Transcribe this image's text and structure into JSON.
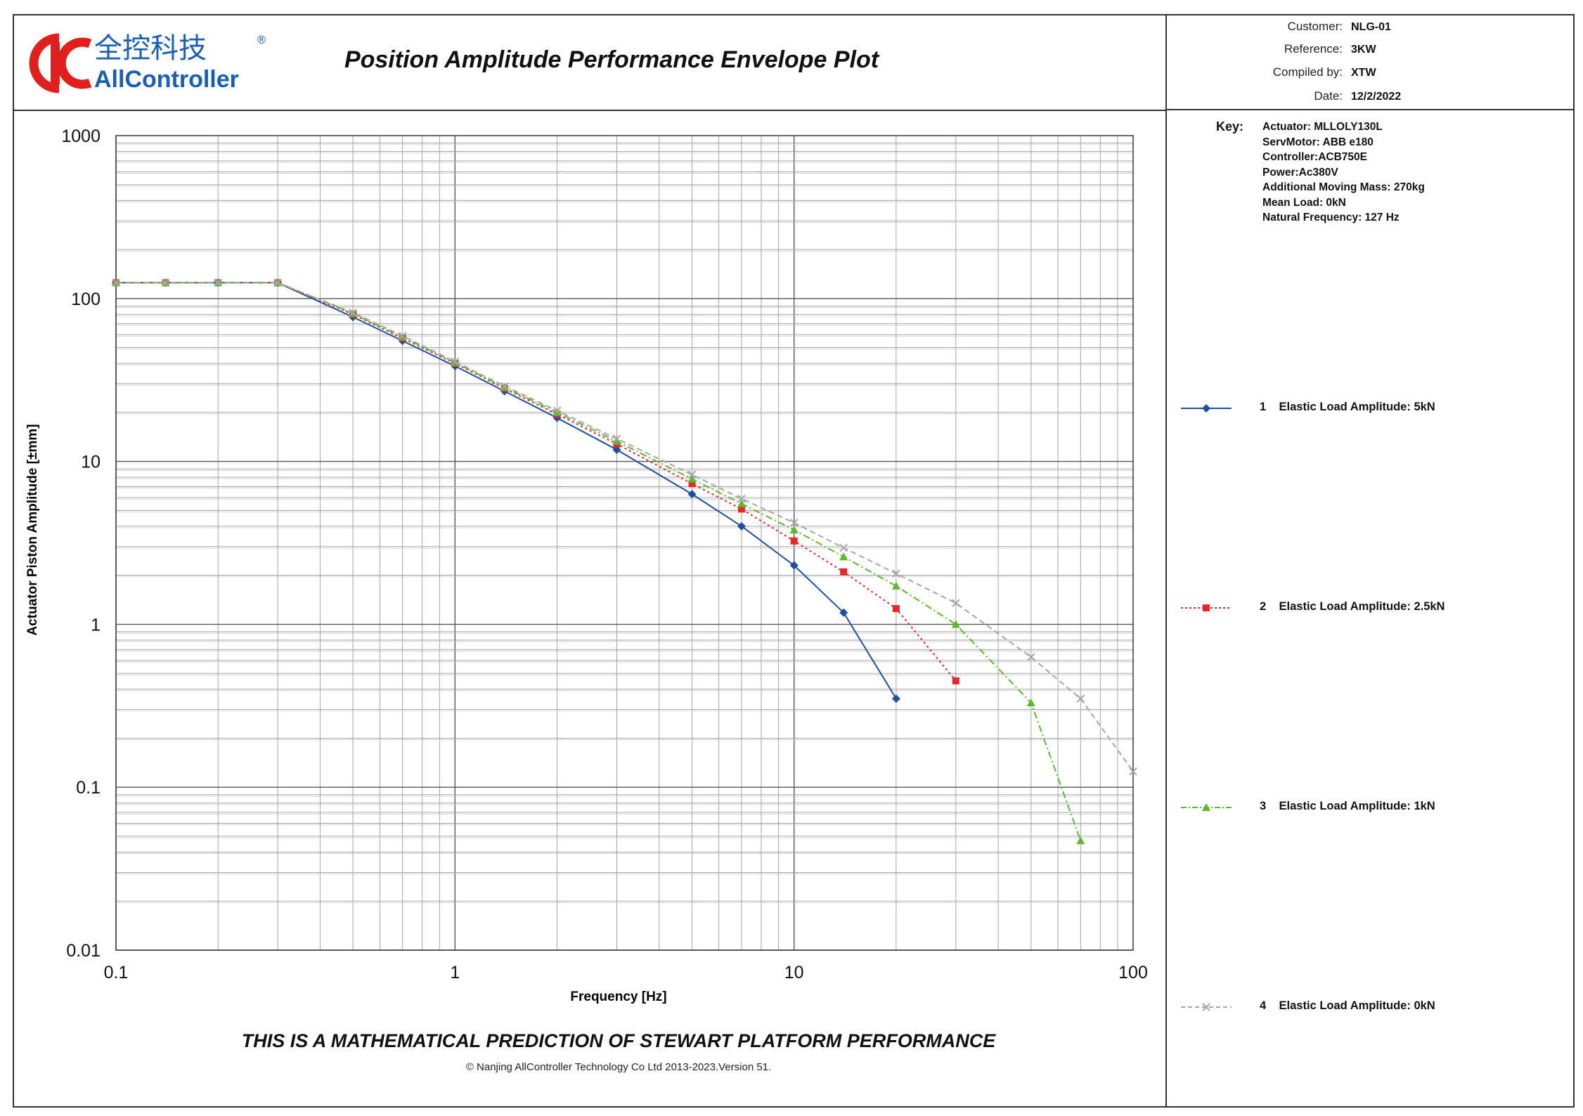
{
  "header": {
    "brand_cn": "全控科技",
    "brand_en": "AllController",
    "registered_mark": "®",
    "title": "Position Amplitude Performance Envelope Plot"
  },
  "info": {
    "customer_label": "Customer:",
    "customer": "NLG-01",
    "reference_label": "Reference:",
    "reference": "3KW",
    "compiled_label": "Compiled by:",
    "compiled_by": "XTW",
    "date_label": "Date:",
    "date": "12/2/2022"
  },
  "key": {
    "label": "Key:",
    "lines": [
      "Actuator:  MLLOLY130L",
      "ServMotor:  ABB e180",
      "Controller:ACB750E",
      "Power:Ac380V",
      "Additional Moving Mass: 270kg",
      "Mean Load: 0kN",
      "Natural Frequency: 127 Hz"
    ]
  },
  "legend": [
    {
      "number": "1",
      "label": "Elastic Load Amplitude: 5kN"
    },
    {
      "number": "2",
      "label": "Elastic Load Amplitude: 2.5kN"
    },
    {
      "number": "3",
      "label": "Elastic Load Amplitude: 1kN"
    },
    {
      "number": "4",
      "label": "Elastic Load Amplitude: 0kN"
    }
  ],
  "footer": {
    "disclaimer": "THIS IS A MATHEMATICAL PREDICTION OF STEWART PLATFORM PERFORMANCE",
    "copyright": "© Nanjing AllController Technology Co Ltd 2013-2023.Version 51."
  },
  "colors": {
    "brand_red": "#e0201c",
    "brand_blue": "#1a5fb4",
    "series_blue": "#1f4fa3",
    "series_red": "#e8262b",
    "series_green": "#5cb82e",
    "series_gray": "#a6a6a6"
  },
  "chart_data": {
    "type": "line",
    "title": "Position Amplitude Performance Envelope Plot",
    "xlabel": "Frequency [Hz]",
    "ylabel": "Actuator Piston Amplitude [±mm]",
    "xscale": "log",
    "yscale": "log",
    "xlim": [
      0.1,
      100
    ],
    "ylim": [
      0.01,
      1000
    ],
    "x_tick_labels": [
      "0.1",
      "1",
      "10",
      "100"
    ],
    "y_tick_labels": [
      "0.01",
      "0.1",
      "1",
      "10",
      "100",
      "1000"
    ],
    "grid": true,
    "legend_position": "right",
    "series": [
      {
        "name": "Elastic Load Amplitude: 5kN",
        "color": "#1f4fa3",
        "marker": "diamond",
        "dash": "solid",
        "points": [
          [
            0.1,
            125
          ],
          [
            0.14,
            125
          ],
          [
            0.2,
            125
          ],
          [
            0.3,
            125
          ],
          [
            0.5,
            77
          ],
          [
            0.7,
            55
          ],
          [
            1,
            38.5
          ],
          [
            1.4,
            27
          ],
          [
            2,
            18.5
          ],
          [
            3,
            11.8
          ],
          [
            5,
            6.3
          ],
          [
            7,
            4.0
          ],
          [
            10,
            2.3
          ],
          [
            14,
            1.18
          ],
          [
            20,
            0.35
          ]
        ]
      },
      {
        "name": "Elastic Load Amplitude: 2.5kN",
        "color": "#e8262b",
        "marker": "square",
        "dash": "dotted",
        "points": [
          [
            0.1,
            125
          ],
          [
            0.14,
            125
          ],
          [
            0.2,
            125
          ],
          [
            0.3,
            125
          ],
          [
            0.5,
            80
          ],
          [
            0.7,
            57
          ],
          [
            1,
            40
          ],
          [
            1.4,
            28
          ],
          [
            2,
            19.5
          ],
          [
            3,
            12.8
          ],
          [
            5,
            7.3
          ],
          [
            7,
            5.1
          ],
          [
            10,
            3.25
          ],
          [
            14,
            2.1
          ],
          [
            20,
            1.25
          ],
          [
            30,
            0.45
          ]
        ]
      },
      {
        "name": "Elastic Load Amplitude: 1kN",
        "color": "#5cb82e",
        "marker": "triangle",
        "dash": "dashdot",
        "points": [
          [
            0.1,
            125
          ],
          [
            0.14,
            125
          ],
          [
            0.2,
            125
          ],
          [
            0.3,
            125
          ],
          [
            0.5,
            81
          ],
          [
            0.7,
            58
          ],
          [
            1,
            40.5
          ],
          [
            1.4,
            28.5
          ],
          [
            2,
            20
          ],
          [
            3,
            13.3
          ],
          [
            5,
            7.8
          ],
          [
            7,
            5.5
          ],
          [
            10,
            3.8
          ],
          [
            14,
            2.6
          ],
          [
            20,
            1.72
          ],
          [
            30,
            1.0
          ],
          [
            50,
            0.33
          ],
          [
            70,
            0.047
          ]
        ]
      },
      {
        "name": "Elastic Load Amplitude: 0kN",
        "color": "#a6a6a6",
        "marker": "x",
        "dash": "dashed",
        "points": [
          [
            0.1,
            125
          ],
          [
            0.14,
            125
          ],
          [
            0.2,
            125
          ],
          [
            0.3,
            125
          ],
          [
            0.5,
            82
          ],
          [
            0.7,
            59
          ],
          [
            1,
            41
          ],
          [
            1.4,
            29
          ],
          [
            2,
            20.5
          ],
          [
            3,
            13.8
          ],
          [
            5,
            8.3
          ],
          [
            7,
            5.9
          ],
          [
            10,
            4.2
          ],
          [
            14,
            2.95
          ],
          [
            20,
            2.05
          ],
          [
            30,
            1.35
          ],
          [
            50,
            0.63
          ],
          [
            70,
            0.35
          ],
          [
            100,
            0.125
          ]
        ]
      }
    ]
  }
}
